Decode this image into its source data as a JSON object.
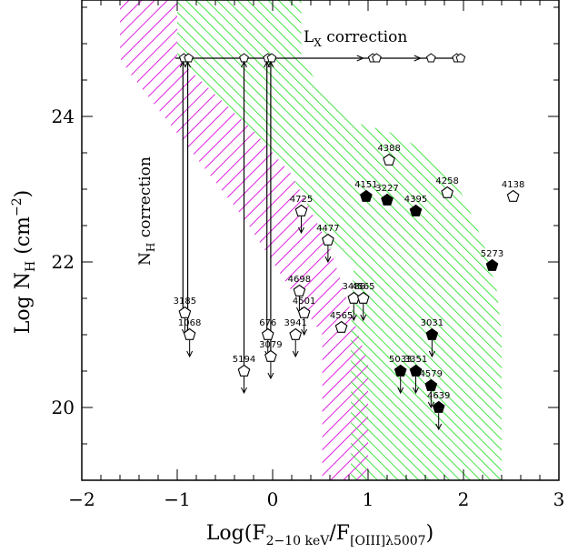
{
  "chart_data": {
    "type": "scatter",
    "xlim": [
      -2,
      3
    ],
    "ylim": [
      19,
      25.6
    ],
    "x_ticks": [
      -2,
      -1,
      0,
      1,
      2,
      3
    ],
    "y_ticks": [
      20,
      22,
      24
    ],
    "x_tick_labels": [
      "−2",
      "−1",
      "0",
      "1",
      "2",
      "3"
    ],
    "y_tick_labels": [
      "20",
      "22",
      "24"
    ],
    "xlabel": {
      "pre": "Log(F",
      "sub1": "2−10 keV",
      "mid": "/F",
      "sub2": "[OIII]λ5007",
      "post": ")"
    },
    "ylabel": {
      "pre": "Log N",
      "sub": "H",
      "mid": " (cm",
      "sup": "−2",
      "post": ")"
    },
    "annotations": {
      "lx": {
        "main": "L",
        "sub": "X",
        "rest": " correction"
      },
      "nh": {
        "main": "N",
        "sub": "H",
        "rest": " correction"
      }
    },
    "colors": {
      "magenta": "#e020e0",
      "green": "#30e030",
      "ink": "#000000"
    },
    "regions": {
      "magenta_boundary": [
        [
          -1.6,
          25.6
        ],
        [
          -1.0,
          25.6
        ],
        [
          -1.0,
          24.8
        ],
        [
          -0.6,
          24.3
        ],
        [
          -0.2,
          23.8
        ],
        [
          0.2,
          23.2
        ],
        [
          0.6,
          22.2
        ],
        [
          1.0,
          20.6
        ],
        [
          1.0,
          19.0
        ],
        [
          0.52,
          19.0
        ],
        [
          0.52,
          21.0
        ],
        [
          0.2,
          21.6
        ],
        [
          -0.3,
          22.6
        ],
        [
          -0.9,
          23.6
        ],
        [
          -1.5,
          24.6
        ],
        [
          -1.6,
          24.8
        ]
      ],
      "green_boundary": [
        [
          -1.0,
          25.6
        ],
        [
          0.3,
          25.6
        ],
        [
          0.3,
          24.8
        ],
        [
          0.6,
          24.2
        ],
        [
          0.9,
          23.9
        ],
        [
          1.2,
          23.8
        ],
        [
          1.5,
          23.6
        ],
        [
          1.8,
          23.3
        ],
        [
          2.0,
          22.9
        ],
        [
          2.2,
          22.3
        ],
        [
          2.35,
          21.6
        ],
        [
          2.4,
          21.0
        ],
        [
          2.4,
          19.0
        ],
        [
          0.82,
          19.0
        ],
        [
          0.82,
          21.0
        ],
        [
          0.85,
          22.0
        ],
        [
          0.6,
          22.2
        ],
        [
          0.2,
          23.2
        ],
        [
          -0.2,
          23.8
        ],
        [
          -0.6,
          24.3
        ],
        [
          -1.0,
          24.8
        ]
      ]
    },
    "lx_line": {
      "y": 24.8,
      "x_start": -1.02,
      "x_end": 1.95
    },
    "lx_points": [
      {
        "x": -0.93,
        "y": 24.8
      },
      {
        "x": -0.88,
        "y": 24.8
      },
      {
        "x": -0.3,
        "y": 24.8
      },
      {
        "x": -0.05,
        "y": 24.8
      },
      {
        "x": -0.01,
        "y": 24.8
      },
      {
        "x": 1.05,
        "y": 24.8
      },
      {
        "x": 1.09,
        "y": 24.8
      },
      {
        "x": 1.66,
        "y": 24.8
      },
      {
        "x": 1.93,
        "y": 24.8
      },
      {
        "x": 1.97,
        "y": 24.8
      }
    ],
    "nh_vertical": [
      {
        "x": -0.94,
        "y_from": 21.3,
        "y_to": 24.75
      },
      {
        "x": -0.89,
        "y_from": 21.0,
        "y_to": 24.75
      },
      {
        "x": -0.3,
        "y_from": 20.5,
        "y_to": 24.75
      },
      {
        "x": -0.06,
        "y_from": 21.0,
        "y_to": 24.75
      },
      {
        "x": -0.02,
        "y_from": 20.7,
        "y_to": 24.75
      }
    ],
    "series": [
      {
        "label": "3185",
        "x": -0.92,
        "y": 21.3,
        "filled": false,
        "arrow": true
      },
      {
        "label": "1068",
        "x": -0.87,
        "y": 21.0,
        "filled": false,
        "arrow": true
      },
      {
        "label": "5194",
        "x": -0.3,
        "y": 20.5,
        "filled": false,
        "arrow": true
      },
      {
        "label": "676",
        "x": -0.05,
        "y": 21.0,
        "filled": false,
        "arrow": true
      },
      {
        "label": "3079",
        "x": -0.02,
        "y": 20.7,
        "filled": false,
        "arrow": true
      },
      {
        "label": "4725",
        "x": 0.3,
        "y": 22.7,
        "filled": false,
        "arrow": true
      },
      {
        "label": "4477",
        "x": 0.58,
        "y": 22.3,
        "filled": false,
        "arrow": true
      },
      {
        "label": "4698",
        "x": 0.28,
        "y": 21.6,
        "filled": false,
        "arrow": true
      },
      {
        "label": "4501",
        "x": 0.33,
        "y": 21.3,
        "filled": false,
        "arrow": true
      },
      {
        "label": "3941",
        "x": 0.24,
        "y": 21.0,
        "filled": false,
        "arrow": true
      },
      {
        "label": "4565",
        "x": 0.72,
        "y": 21.1,
        "filled": false,
        "arrow": false
      },
      {
        "label": "3486",
        "x": 0.85,
        "y": 21.5,
        "filled": false,
        "arrow": true
      },
      {
        "label": "4565",
        "x": 0.95,
        "y": 21.5,
        "filled": false,
        "arrow": true
      },
      {
        "label": "4388",
        "x": 1.22,
        "y": 23.4,
        "filled": false,
        "arrow": false
      },
      {
        "label": "4151",
        "x": 0.98,
        "y": 22.9,
        "filled": true,
        "arrow": false
      },
      {
        "label": "3227",
        "x": 1.2,
        "y": 22.85,
        "filled": true,
        "arrow": false
      },
      {
        "label": "4395",
        "x": 1.5,
        "y": 22.7,
        "filled": true,
        "arrow": false
      },
      {
        "label": "4258",
        "x": 1.83,
        "y": 22.95,
        "filled": false,
        "arrow": false
      },
      {
        "label": "4138",
        "x": 2.52,
        "y": 22.9,
        "filled": false,
        "arrow": false
      },
      {
        "label": "5273",
        "x": 2.3,
        "y": 21.95,
        "filled": true,
        "arrow": false
      },
      {
        "label": "3031",
        "x": 1.67,
        "y": 21.0,
        "filled": true,
        "arrow": true
      },
      {
        "label": "5033",
        "x": 1.34,
        "y": 20.5,
        "filled": true,
        "arrow": true
      },
      {
        "label": "3351",
        "x": 1.5,
        "y": 20.5,
        "filled": true,
        "arrow": true
      },
      {
        "label": "4579",
        "x": 1.66,
        "y": 20.3,
        "filled": true,
        "arrow": true
      },
      {
        "label": "4639",
        "x": 1.74,
        "y": 20.0,
        "filled": true,
        "arrow": true
      }
    ]
  }
}
